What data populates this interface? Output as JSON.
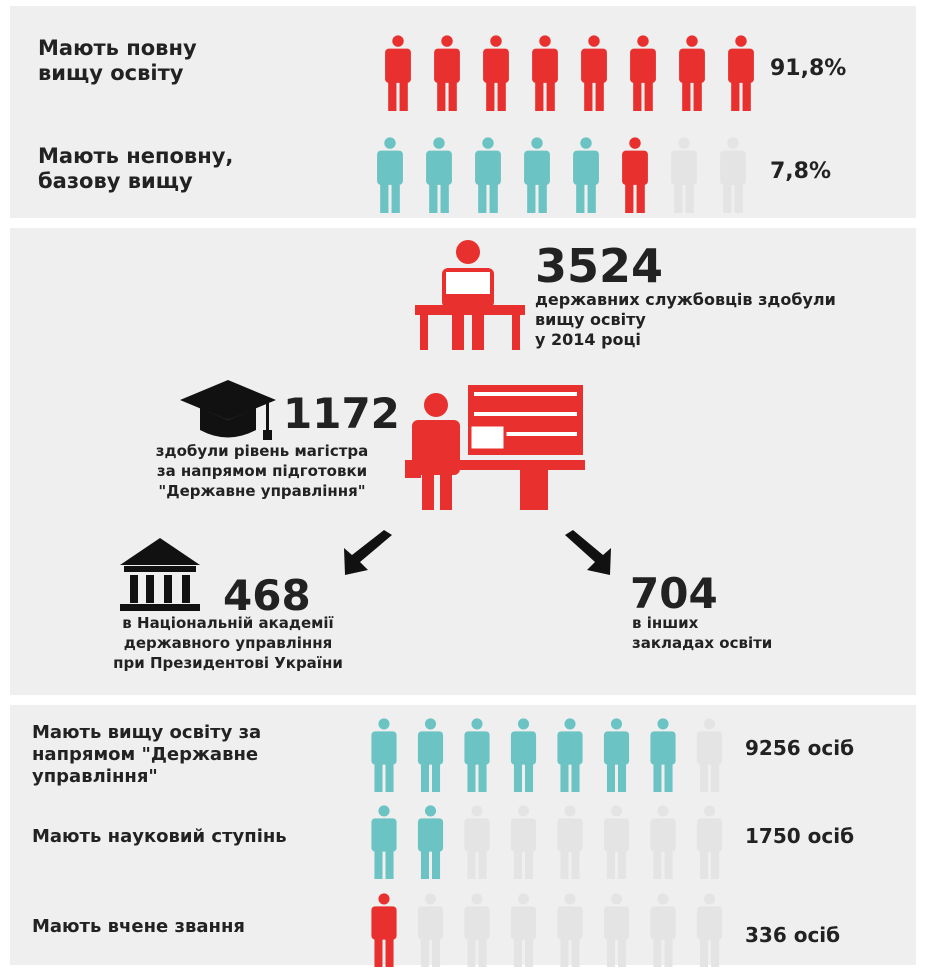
{
  "education_levels": [
    {
      "label": [
        "Мають повну",
        "вищу освіту"
      ],
      "value": "91,8%"
    },
    {
      "label": [
        "Мають неповну,",
        "базову вищу"
      ],
      "value": "7,8%"
    }
  ],
  "graduates": {
    "number": "3524",
    "text": [
      "державних службовців здобули",
      "вищу освіту",
      "у 2014 році"
    ]
  },
  "masters": {
    "number": "1172",
    "text": [
      "здобули рівень магістра",
      "за напрямом підготовки",
      "\"Державне управління\""
    ]
  },
  "academy": {
    "number": "468",
    "text": [
      "в Національній академії",
      "державного управління",
      "при Президентові України"
    ]
  },
  "other_institutions": {
    "number": "704",
    "text": [
      "в інших",
      "закладах освіти"
    ]
  },
  "public_administration": [
    {
      "label": [
        "Мають вищу освіту за",
        "напрямом \"Державне",
        "управління\""
      ],
      "value": "9256 осіб"
    },
    {
      "label": [
        "Мають науковий ступінь"
      ],
      "value": "1750 осіб"
    },
    {
      "label": [
        "Мають вчене звання"
      ],
      "value": "336 осіб"
    }
  ]
}
